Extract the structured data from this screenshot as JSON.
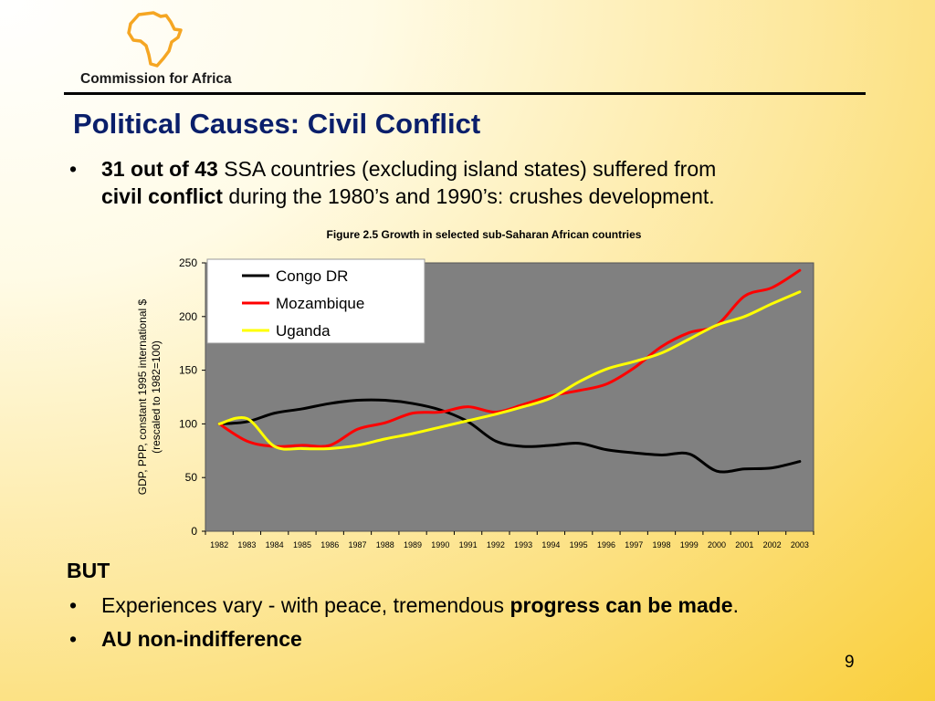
{
  "logo": {
    "text": "Commission for Africa",
    "icon": "africa-map-icon",
    "color": "#f5a623"
  },
  "title": "Political Causes: Civil Conflict",
  "bullet1": {
    "bold_a": "31 out of 43",
    "text_a": " SSA countries (excluding island states) suffered from",
    "bold_b": "civil conflict",
    "text_b": " during the 1980’s and 1990’s: crushes development."
  },
  "figure_caption": "Figure 2.5 Growth in selected sub-Saharan African countries",
  "chart_data": {
    "type": "line",
    "title": "Figure 2.5 Growth in selected sub-Saharan African countries",
    "ylabel": "GDP, PPP, constant 1995 international $ (rescaled to 1982=100)",
    "ylabel_lines": [
      "GDP, PPP, constant 1995 international $",
      "(rescaled to 1982=100)"
    ],
    "xlabel": "",
    "ylim": [
      0,
      250
    ],
    "yticks": [
      0,
      50,
      100,
      150,
      200,
      250
    ],
    "x": [
      "1982",
      "1983",
      "1984",
      "1985",
      "1986",
      "1987",
      "1988",
      "1989",
      "1990",
      "1991",
      "1992",
      "1993",
      "1994",
      "1995",
      "1996",
      "1997",
      "1998",
      "1999",
      "2000",
      "2001",
      "2002",
      "2003"
    ],
    "series": [
      {
        "name": "Congo DR",
        "color": "#000000",
        "values": [
          100,
          102,
          110,
          114,
          119,
          122,
          122,
          119,
          113,
          102,
          84,
          79,
          80,
          82,
          76,
          73,
          71,
          72,
          56,
          58,
          59,
          65
        ]
      },
      {
        "name": "Mozambique",
        "color": "#ff0000",
        "values": [
          100,
          84,
          79,
          80,
          80,
          95,
          101,
          110,
          111,
          116,
          111,
          118,
          126,
          131,
          137,
          152,
          172,
          185,
          192,
          219,
          227,
          243
        ]
      },
      {
        "name": "Uganda",
        "color": "#ffff00",
        "values": [
          100,
          105,
          79,
          77,
          77,
          80,
          86,
          91,
          97,
          103,
          109,
          116,
          124,
          139,
          151,
          158,
          166,
          179,
          192,
          200,
          212,
          223
        ]
      }
    ],
    "plot_background": "#808080",
    "legend_placement": "top-left",
    "grid": false
  },
  "but_label": "BUT",
  "bullet2": {
    "text": "Experiences vary - with peace, tremendous ",
    "bold": "progress can be made",
    "end": "."
  },
  "bullet3": {
    "bold": "AU non-indifference"
  },
  "page_number": "9"
}
